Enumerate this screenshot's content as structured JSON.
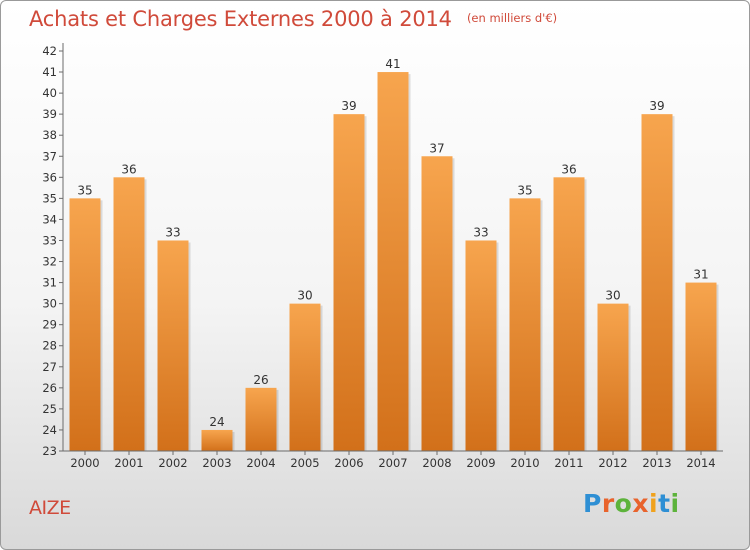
{
  "header": {
    "title": "Achats et Charges Externes 2000 à 2014",
    "subtitle": "(en milliers d'€)"
  },
  "footer": {
    "commune": "AIZE",
    "logo": "Proxiti"
  },
  "colors": {
    "title": "#d04a3a",
    "bar_top": "#f7a54e",
    "bar_bottom": "#d2701a",
    "logo_letters": [
      "#2e8fd4",
      "#e8632c",
      "#5db33b",
      "#e8632c",
      "#f0a21d",
      "#2e8fd4",
      "#5db33b"
    ]
  },
  "chart_data": {
    "type": "bar",
    "categories": [
      "2000",
      "2001",
      "2002",
      "2003",
      "2004",
      "2005",
      "2006",
      "2007",
      "2008",
      "2009",
      "2010",
      "2011",
      "2012",
      "2013",
      "2014"
    ],
    "values": [
      35,
      36,
      33,
      24,
      26,
      30,
      39,
      41,
      37,
      33,
      35,
      36,
      30,
      39,
      31
    ],
    "title": "Achats et Charges Externes 2000 à 2014",
    "subtitle": "(en milliers d'€)",
    "xlabel": "",
    "ylabel": "",
    "ylim": [
      23,
      42
    ],
    "yticks": [
      23,
      24,
      25,
      26,
      27,
      28,
      29,
      30,
      31,
      32,
      33,
      34,
      35,
      36,
      37,
      38,
      39,
      40,
      41,
      42
    ],
    "grid": false,
    "data_labels": true
  }
}
